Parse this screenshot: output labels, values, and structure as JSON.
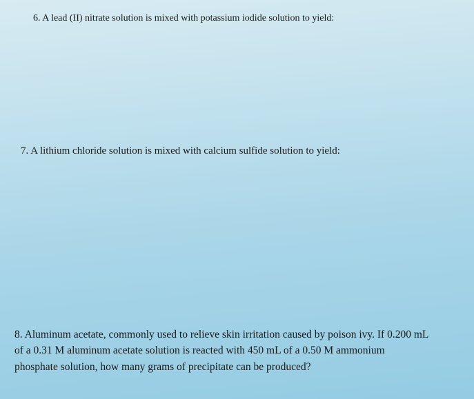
{
  "questions": {
    "q6": {
      "number": "6.",
      "text": "A lead (II) nitrate solution is mixed with potassium iodide solution to yield:"
    },
    "q7": {
      "number": "7.",
      "text": "A lithium chloride solution is mixed with calcium sulfide solution to yield:"
    },
    "q8": {
      "number": "8.",
      "line1": "Aluminum acetate, commonly used to relieve skin irritation caused by poison ivy. If 0.200 mL",
      "line2": "of a 0.31 M aluminum acetate solution is reacted with 450 mL of a 0.50 M ammonium",
      "line3": "phosphate solution, how many grams of precipitate can be produced?"
    }
  },
  "styling": {
    "background_gradient": [
      "#d8ebf2",
      "#c0e0ed",
      "#a8d5e8",
      "#95cce3"
    ],
    "text_color": "#1a1a1a",
    "font_family": "Garamond",
    "q6_fontsize": 14,
    "q7_fontsize": 15,
    "q8_fontsize": 15.5
  }
}
